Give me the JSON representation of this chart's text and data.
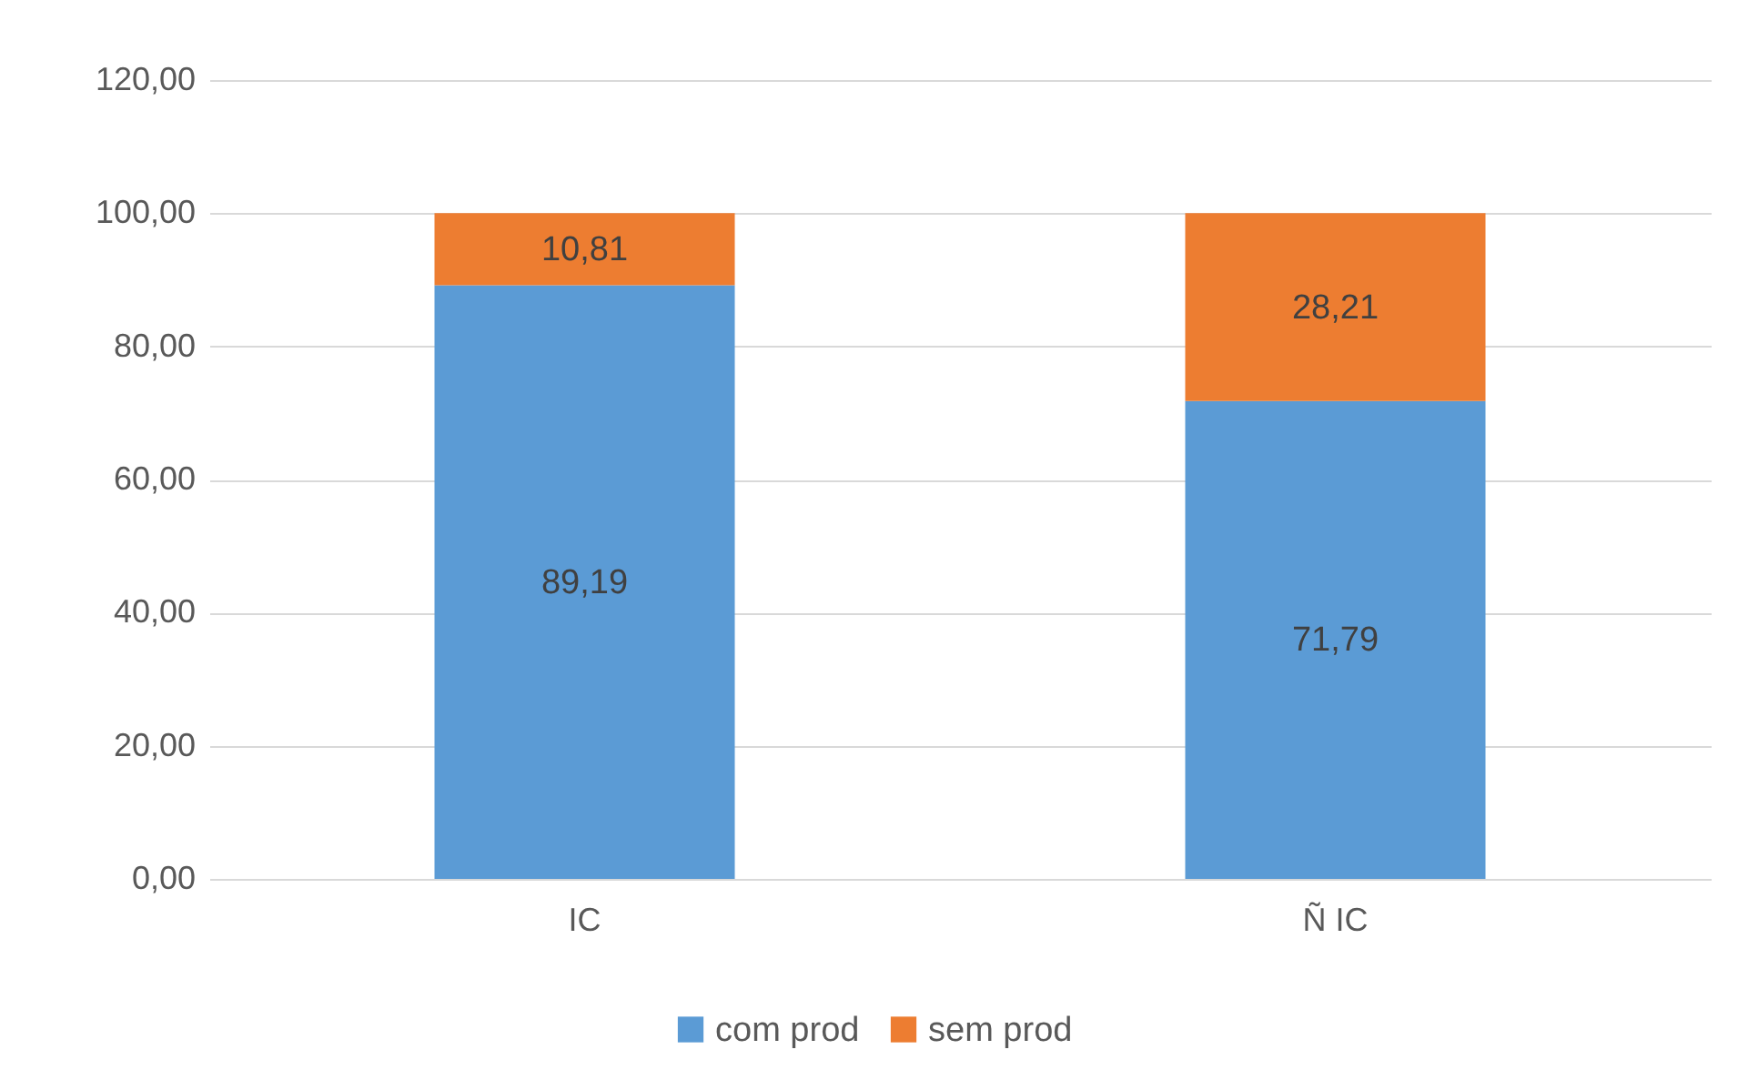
{
  "chart_data": {
    "type": "bar",
    "stacked": true,
    "categories": [
      "IC",
      "Ñ IC"
    ],
    "series": [
      {
        "name": "com prod",
        "color": "#5b9bd5",
        "values": [
          89.19,
          71.79
        ],
        "value_labels": [
          "89,19",
          "71,79"
        ]
      },
      {
        "name": "sem prod",
        "color": "#ed7d31",
        "values": [
          10.81,
          28.21
        ],
        "value_labels": [
          "10,81",
          "28,21"
        ]
      }
    ],
    "ylim": [
      0,
      120
    ],
    "yticks": [
      {
        "value": 0,
        "label": "0,00"
      },
      {
        "value": 20,
        "label": "20,00"
      },
      {
        "value": 40,
        "label": "40,00"
      },
      {
        "value": 60,
        "label": "60,00"
      },
      {
        "value": 80,
        "label": "80,00"
      },
      {
        "value": 100,
        "label": "100,00"
      },
      {
        "value": 120,
        "label": "120,00"
      }
    ],
    "grid": "y",
    "legend": "bottom"
  }
}
